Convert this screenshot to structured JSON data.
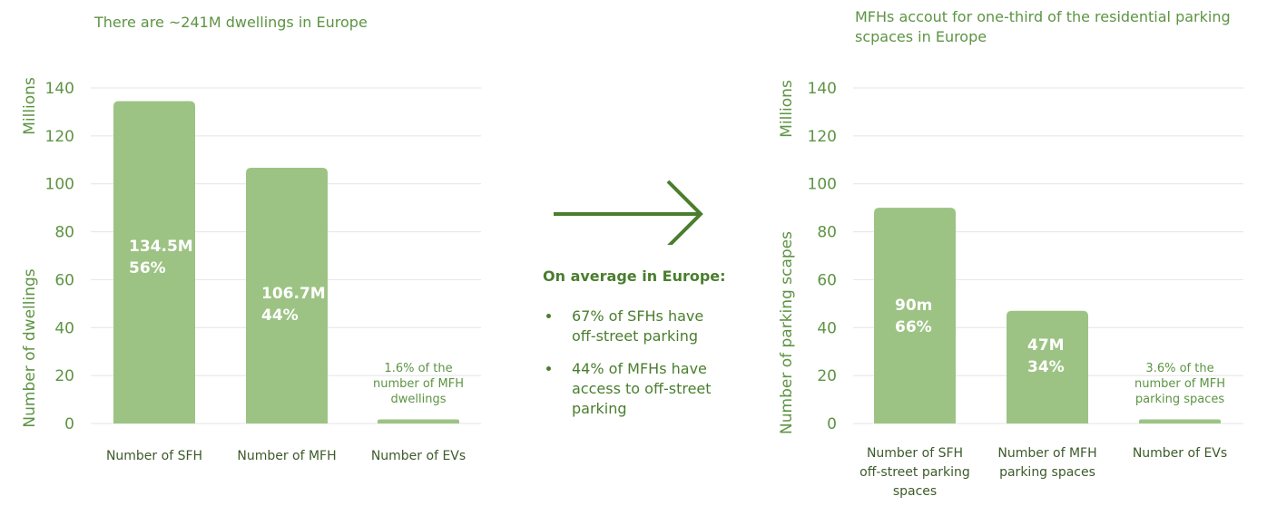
{
  "colors": {
    "bar": "#9cc383",
    "text": "#5d9443",
    "dark": "#4a7e2e",
    "grid": "#e4e4e4"
  },
  "chart_data": [
    {
      "type": "bar",
      "title": "There are ~241M dwellings in Europe",
      "ylabel_top": "Millions",
      "ylabel": "Number of dwellings",
      "ylim": [
        0,
        140
      ],
      "yticks": [
        0,
        20,
        40,
        60,
        80,
        100,
        120,
        140
      ],
      "grid": true,
      "categories": [
        [
          "Number of SFH"
        ],
        [
          "Number of MFH"
        ],
        [
          "Number of EVs"
        ]
      ],
      "values": [
        134.5,
        106.7,
        1.7
      ],
      "bar_labels": [
        [
          "134.5M",
          "56%"
        ],
        [
          "106.7M",
          "44%"
        ],
        []
      ],
      "annotations": [
        {
          "bar": 2,
          "lines": [
            "1.6% of the",
            "number of MFH",
            "dwellings"
          ]
        }
      ]
    },
    {
      "type": "bar",
      "title": "MFHs accout for one-third of the residential parking scpaces in Europe",
      "title_lines": [
        "MFHs accout for one-third of the residential parking",
        "scpaces in Europe"
      ],
      "ylabel_top": "Millions",
      "ylabel": "Number of parking scapes",
      "ylim": [
        0,
        140
      ],
      "yticks": [
        0,
        20,
        40,
        60,
        80,
        100,
        120,
        140
      ],
      "grid": true,
      "categories": [
        [
          "Number of SFH",
          "off-street parking",
          "spaces"
        ],
        [
          "Number of MFH",
          "parking spaces"
        ],
        [
          "Number of EVs"
        ]
      ],
      "values": [
        90,
        47,
        1.7
      ],
      "bar_labels": [
        [
          "90m",
          "66%"
        ],
        [
          "47M",
          "34%"
        ],
        []
      ],
      "annotations": [
        {
          "bar": 2,
          "lines": [
            "3.6% of the",
            "number of MFH",
            "parking spaces"
          ]
        }
      ]
    }
  ],
  "middle": {
    "heading": "On average in Europe:",
    "bullets": [
      [
        "67% of SFHs have",
        "off-street parking"
      ],
      [
        "44% of MFHs have",
        "access to off-street",
        "parking"
      ]
    ]
  }
}
